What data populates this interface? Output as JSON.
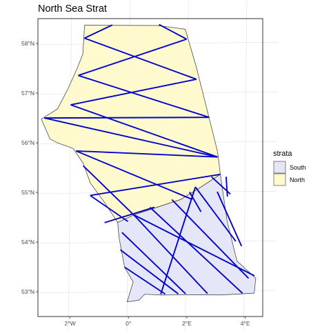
{
  "chart_data": {
    "type": "map",
    "title": "North Sea Strat",
    "xlabel": "",
    "ylabel": "",
    "x_ticks": [
      {
        "label": "2°W",
        "lon": -2
      },
      {
        "label": "0°",
        "lon": 0
      },
      {
        "label": "2°E",
        "lon": 2
      },
      {
        "label": "4°E",
        "lon": 4
      }
    ],
    "y_ticks": [
      {
        "label": "58°N",
        "lat": 58
      },
      {
        "label": "57°N",
        "lat": 57
      },
      {
        "label": "56°N",
        "lat": 56
      },
      {
        "label": "55°N",
        "lat": 55
      },
      {
        "label": "54°N",
        "lat": 54
      },
      {
        "label": "53°N",
        "lat": 53
      }
    ],
    "xlim": [
      -3.1,
      4.6
    ],
    "ylim": [
      52.5,
      58.5
    ],
    "grid": true,
    "legend": {
      "title": "strata",
      "placement": "right",
      "entries": [
        {
          "label": "South",
          "color": "#e5e6f7"
        },
        {
          "label": "North",
          "color": "#fffacd"
        }
      ]
    },
    "colors": {
      "transect": "#0000cc",
      "outline": "#333333",
      "panel_border": "#333333",
      "grid": "#e0e0e0"
    },
    "strata": [
      {
        "name": "North",
        "fill": "#fffacd",
        "polygon": [
          [
            -1.55,
            58.38
          ],
          [
            0.95,
            58.36
          ],
          [
            1.9,
            58.28
          ],
          [
            2.3,
            57.5
          ],
          [
            3.05,
            55.8
          ],
          [
            3.15,
            55.35
          ],
          [
            2.5,
            55.1
          ],
          [
            1.8,
            54.85
          ],
          [
            1.0,
            54.7
          ],
          [
            0.2,
            54.55
          ],
          [
            -0.35,
            54.4
          ],
          [
            -0.8,
            54.8
          ],
          [
            -1.3,
            55.2
          ],
          [
            -1.55,
            55.6
          ],
          [
            -1.9,
            55.9
          ],
          [
            -2.45,
            56.02
          ],
          [
            -2.7,
            56.1
          ],
          [
            -3.0,
            56.5
          ],
          [
            -2.45,
            56.7
          ],
          [
            -2.1,
            57.1
          ],
          [
            -1.8,
            57.5
          ],
          [
            -1.6,
            57.8
          ],
          [
            -1.55,
            58.38
          ]
        ]
      },
      {
        "name": "South",
        "fill": "#e5e6f7",
        "polygon": [
          [
            -0.35,
            54.4
          ],
          [
            0.2,
            54.55
          ],
          [
            1.0,
            54.7
          ],
          [
            1.8,
            54.85
          ],
          [
            2.5,
            55.1
          ],
          [
            3.15,
            55.35
          ],
          [
            3.4,
            54.4
          ],
          [
            3.75,
            53.6
          ],
          [
            4.4,
            53.25
          ],
          [
            4.35,
            52.95
          ],
          [
            3.2,
            52.92
          ],
          [
            2.1,
            52.93
          ],
          [
            1.2,
            52.93
          ],
          [
            0.6,
            52.95
          ],
          [
            0.4,
            52.83
          ],
          [
            0.0,
            52.8
          ],
          [
            0.2,
            53.2
          ],
          [
            -0.1,
            53.5
          ],
          [
            -0.2,
            53.8
          ],
          [
            -0.3,
            54.1
          ],
          [
            -0.35,
            54.4
          ]
        ]
      }
    ],
    "transects": [
      {
        "stratum": "North",
        "points": [
          [
            -1.55,
            58.12
          ],
          [
            -0.6,
            58.38
          ]
        ]
      },
      {
        "stratum": "North",
        "points": [
          [
            1.0,
            58.38
          ],
          [
            1.95,
            58.08
          ]
        ]
      },
      {
        "stratum": "North",
        "points": [
          [
            -1.55,
            58.12
          ],
          [
            2.3,
            57.27
          ]
        ]
      },
      {
        "stratum": "North",
        "points": [
          [
            1.95,
            58.08
          ],
          [
            -1.75,
            57.37
          ]
        ]
      },
      {
        "stratum": "North",
        "points": [
          [
            -1.75,
            57.37
          ],
          [
            2.75,
            56.5
          ]
        ]
      },
      {
        "stratum": "North",
        "points": [
          [
            2.3,
            57.27
          ],
          [
            -2.0,
            56.78
          ]
        ]
      },
      {
        "stratum": "North",
        "points": [
          [
            -2.0,
            56.78
          ],
          [
            3.05,
            55.7
          ]
        ]
      },
      {
        "stratum": "North",
        "points": [
          [
            2.75,
            56.5
          ],
          [
            -2.9,
            56.52
          ]
        ]
      },
      {
        "stratum": "North",
        "points": [
          [
            -2.9,
            56.52
          ],
          [
            3.05,
            55.7
          ]
        ]
      },
      {
        "stratum": "North",
        "points": [
          [
            3.05,
            55.7
          ],
          [
            -1.8,
            55.85
          ]
        ]
      },
      {
        "stratum": "North",
        "points": [
          [
            -1.8,
            55.85
          ],
          [
            2.2,
            54.85
          ]
        ]
      },
      {
        "stratum": "North",
        "points": [
          [
            3.15,
            55.35
          ],
          [
            -1.3,
            54.95
          ]
        ]
      },
      {
        "stratum": "North",
        "points": [
          [
            -1.3,
            54.95
          ],
          [
            0.0,
            54.42
          ]
        ]
      },
      {
        "stratum": "North",
        "points": [
          [
            -1.55,
            55.55
          ],
          [
            0.25,
            54.52
          ]
        ]
      },
      {
        "stratum": "North",
        "points": [
          [
            -0.8,
            54.4
          ],
          [
            0.9,
            54.7
          ]
        ]
      },
      {
        "stratum": "South",
        "points": [
          [
            2.85,
            55.3
          ],
          [
            3.5,
            54.95
          ]
        ]
      },
      {
        "stratum": "South",
        "points": [
          [
            2.3,
            55.1
          ],
          [
            3.7,
            54.0
          ]
        ]
      },
      {
        "stratum": "South",
        "points": [
          [
            1.5,
            54.85
          ],
          [
            4.15,
            53.25
          ]
        ]
      },
      {
        "stratum": "South",
        "points": [
          [
            0.75,
            54.7
          ],
          [
            3.95,
            52.95
          ]
        ]
      },
      {
        "stratum": "South",
        "points": [
          [
            0.2,
            54.55
          ],
          [
            2.75,
            52.95
          ]
        ]
      },
      {
        "stratum": "South",
        "points": [
          [
            -0.2,
            54.2
          ],
          [
            2.0,
            52.95
          ]
        ]
      },
      {
        "stratum": "South",
        "points": [
          [
            -0.25,
            53.85
          ],
          [
            1.75,
            52.95
          ]
        ]
      },
      {
        "stratum": "South",
        "points": [
          [
            -0.1,
            53.5
          ],
          [
            1.3,
            52.95
          ]
        ]
      },
      {
        "stratum": "South",
        "points": [
          [
            2.3,
            55.1
          ],
          [
            1.15,
            52.95
          ]
        ]
      },
      {
        "stratum": "South",
        "points": [
          [
            3.35,
            55.3
          ],
          [
            3.4,
            54.9
          ]
        ]
      },
      {
        "stratum": "South",
        "points": [
          [
            3.05,
            55.0
          ],
          [
            3.9,
            53.9
          ]
        ]
      },
      {
        "stratum": "South",
        "points": [
          [
            2.1,
            55.0
          ],
          [
            2.5,
            54.6
          ]
        ]
      },
      {
        "stratum": "South",
        "points": [
          [
            0.2,
            54.55
          ],
          [
            4.35,
            53.3
          ]
        ]
      }
    ]
  }
}
